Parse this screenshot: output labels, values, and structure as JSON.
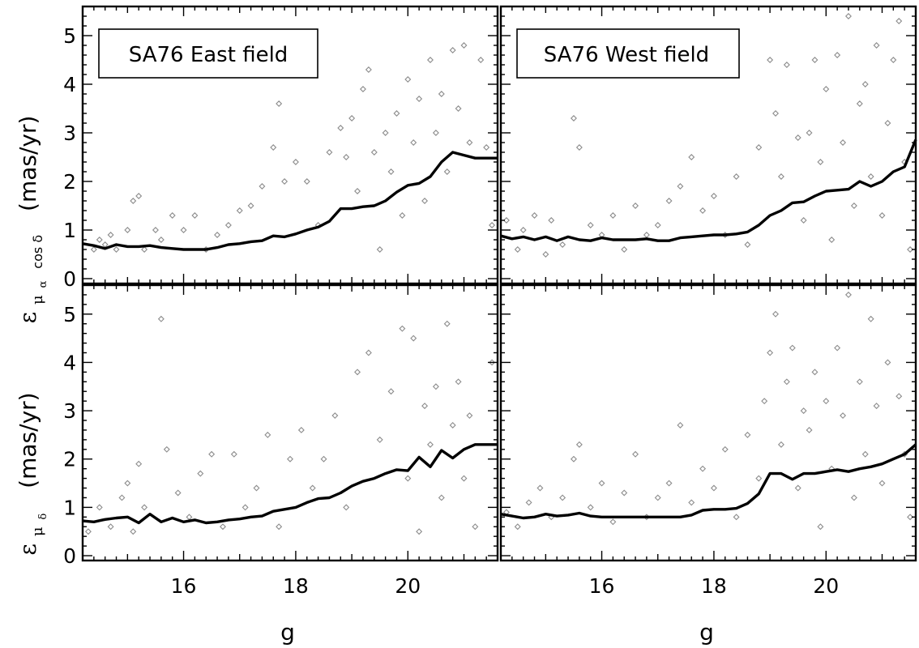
{
  "figure": {
    "x_axis_label": "g",
    "y_axis_top_unit": "(mas/yr)",
    "y_axis_bottom_unit": "(mas/yr)",
    "y_axis_top_symbol": "ε",
    "y_axis_top_subscript_main": "μ",
    "y_axis_top_subscript_sub": "α",
    "y_axis_top_subscript_tail": "cos δ",
    "y_axis_bottom_symbol": "ε",
    "y_axis_bottom_subscript_main": "μ",
    "y_axis_bottom_subscript_sub": "δ"
  },
  "chart_data": [
    {
      "type": "scatter",
      "panel": "top-left",
      "legend": "SA76 East field",
      "xlim": [
        14.2,
        21.6
      ],
      "ylim": [
        -0.1,
        5.6
      ],
      "x_ticks": [
        16,
        18,
        20
      ],
      "y_ticks": [
        0,
        1,
        2,
        3,
        4,
        5
      ],
      "scatter_color": "#8c8c8c",
      "curve_color": "#000000",
      "points": [
        [
          14.4,
          0.6
        ],
        [
          14.5,
          0.8
        ],
        [
          14.6,
          0.7
        ],
        [
          14.7,
          0.9
        ],
        [
          14.8,
          0.6
        ],
        [
          15.0,
          1.0
        ],
        [
          15.1,
          1.6
        ],
        [
          15.2,
          1.7
        ],
        [
          15.3,
          0.6
        ],
        [
          15.5,
          1.0
        ],
        [
          15.6,
          0.8
        ],
        [
          15.8,
          1.3
        ],
        [
          16.0,
          1.0
        ],
        [
          16.2,
          1.3
        ],
        [
          16.4,
          0.6
        ],
        [
          16.6,
          0.9
        ],
        [
          16.8,
          1.1
        ],
        [
          17.0,
          1.4
        ],
        [
          17.2,
          1.5
        ],
        [
          17.4,
          1.9
        ],
        [
          17.6,
          2.7
        ],
        [
          17.7,
          3.6
        ],
        [
          17.8,
          2.0
        ],
        [
          18.0,
          2.4
        ],
        [
          18.2,
          2.0
        ],
        [
          18.4,
          1.1
        ],
        [
          18.6,
          2.6
        ],
        [
          18.8,
          3.1
        ],
        [
          18.9,
          2.5
        ],
        [
          19.0,
          3.3
        ],
        [
          19.1,
          1.8
        ],
        [
          19.2,
          3.9
        ],
        [
          19.3,
          4.3
        ],
        [
          19.4,
          2.6
        ],
        [
          19.5,
          0.6
        ],
        [
          19.6,
          3.0
        ],
        [
          19.7,
          2.2
        ],
        [
          19.8,
          3.4
        ],
        [
          19.9,
          1.3
        ],
        [
          20.0,
          4.1
        ],
        [
          20.1,
          2.8
        ],
        [
          20.2,
          3.7
        ],
        [
          20.3,
          1.6
        ],
        [
          20.4,
          4.5
        ],
        [
          20.5,
          3.0
        ],
        [
          20.6,
          3.8
        ],
        [
          20.7,
          2.2
        ],
        [
          20.8,
          4.7
        ],
        [
          20.9,
          3.5
        ],
        [
          21.0,
          4.8
        ],
        [
          21.1,
          2.8
        ],
        [
          21.3,
          4.5
        ],
        [
          21.4,
          2.7
        ],
        [
          21.5,
          1.1
        ]
      ],
      "curve_x": [
        14.2,
        14.4,
        14.6,
        14.8,
        15.0,
        15.2,
        15.4,
        15.6,
        15.8,
        16.0,
        16.2,
        16.4,
        16.6,
        16.8,
        17.0,
        17.2,
        17.4,
        17.6,
        17.8,
        18.0,
        18.2,
        18.4,
        18.6,
        18.8,
        19.0,
        19.2,
        19.4,
        19.6,
        19.8,
        20.0,
        20.2,
        20.4,
        20.6,
        20.8,
        21.0,
        21.2,
        21.4,
        21.6
      ],
      "curve_y": [
        0.72,
        0.68,
        0.62,
        0.7,
        0.66,
        0.66,
        0.68,
        0.64,
        0.62,
        0.6,
        0.6,
        0.6,
        0.64,
        0.7,
        0.72,
        0.76,
        0.78,
        0.88,
        0.86,
        0.92,
        1.0,
        1.06,
        1.18,
        1.44,
        1.44,
        1.48,
        1.5,
        1.6,
        1.78,
        1.92,
        1.96,
        2.1,
        2.4,
        2.6,
        2.54,
        2.48,
        2.48,
        2.48
      ]
    },
    {
      "type": "scatter",
      "panel": "top-right",
      "legend": "SA76 West field",
      "xlim": [
        14.2,
        21.6
      ],
      "ylim": [
        -0.1,
        5.6
      ],
      "x_ticks": [
        16,
        18,
        20
      ],
      "y_ticks": [
        0,
        1,
        2,
        3,
        4,
        5
      ],
      "scatter_color": "#8c8c8c",
      "curve_color": "#000000",
      "points": [
        [
          14.3,
          1.2
        ],
        [
          14.5,
          0.6
        ],
        [
          14.6,
          1.0
        ],
        [
          14.8,
          1.3
        ],
        [
          15.0,
          0.5
        ],
        [
          15.1,
          1.2
        ],
        [
          15.3,
          0.7
        ],
        [
          15.5,
          3.3
        ],
        [
          15.6,
          2.7
        ],
        [
          15.8,
          1.1
        ],
        [
          16.0,
          0.9
        ],
        [
          16.2,
          1.3
        ],
        [
          16.4,
          0.6
        ],
        [
          16.6,
          1.5
        ],
        [
          16.8,
          0.9
        ],
        [
          17.0,
          1.1
        ],
        [
          17.2,
          1.6
        ],
        [
          17.4,
          1.9
        ],
        [
          17.6,
          2.5
        ],
        [
          17.8,
          1.4
        ],
        [
          18.0,
          1.7
        ],
        [
          18.2,
          0.9
        ],
        [
          18.4,
          2.1
        ],
        [
          18.6,
          0.7
        ],
        [
          18.8,
          2.7
        ],
        [
          19.0,
          4.5
        ],
        [
          19.1,
          3.4
        ],
        [
          19.2,
          2.1
        ],
        [
          19.3,
          4.4
        ],
        [
          19.5,
          2.9
        ],
        [
          19.6,
          1.2
        ],
        [
          19.7,
          3.0
        ],
        [
          19.8,
          4.5
        ],
        [
          19.9,
          2.4
        ],
        [
          20.0,
          3.9
        ],
        [
          20.1,
          0.8
        ],
        [
          20.2,
          4.6
        ],
        [
          20.3,
          2.8
        ],
        [
          20.4,
          5.4
        ],
        [
          20.5,
          1.5
        ],
        [
          20.6,
          3.6
        ],
        [
          20.7,
          4.0
        ],
        [
          20.8,
          2.1
        ],
        [
          20.9,
          4.8
        ],
        [
          21.0,
          1.3
        ],
        [
          21.1,
          3.2
        ],
        [
          21.2,
          4.5
        ],
        [
          21.3,
          5.3
        ],
        [
          21.4,
          2.4
        ],
        [
          21.5,
          0.6
        ]
      ],
      "curve_x": [
        14.2,
        14.4,
        14.6,
        14.8,
        15.0,
        15.2,
        15.4,
        15.6,
        15.8,
        16.0,
        16.2,
        16.4,
        16.6,
        16.8,
        17.0,
        17.2,
        17.4,
        17.6,
        17.8,
        18.0,
        18.2,
        18.4,
        18.6,
        18.8,
        19.0,
        19.2,
        19.4,
        19.6,
        19.8,
        20.0,
        20.2,
        20.4,
        20.6,
        20.8,
        21.0,
        21.2,
        21.4,
        21.6
      ],
      "curve_y": [
        0.88,
        0.82,
        0.86,
        0.8,
        0.86,
        0.78,
        0.86,
        0.8,
        0.78,
        0.84,
        0.8,
        0.8,
        0.8,
        0.82,
        0.78,
        0.78,
        0.84,
        0.86,
        0.88,
        0.9,
        0.9,
        0.92,
        0.96,
        1.1,
        1.3,
        1.4,
        1.56,
        1.58,
        1.7,
        1.8,
        1.82,
        1.84,
        2.0,
        1.9,
        2.0,
        2.2,
        2.3,
        2.86
      ]
    },
    {
      "type": "scatter",
      "panel": "bottom-left",
      "xlim": [
        14.2,
        21.6
      ],
      "ylim": [
        -0.1,
        5.6
      ],
      "x_ticks": [
        16,
        18,
        20
      ],
      "y_ticks": [
        0,
        1,
        2,
        3,
        4,
        5
      ],
      "scatter_color": "#8c8c8c",
      "curve_color": "#000000",
      "points": [
        [
          14.3,
          0.5
        ],
        [
          14.5,
          1.0
        ],
        [
          14.7,
          0.6
        ],
        [
          14.9,
          1.2
        ],
        [
          15.0,
          1.5
        ],
        [
          15.1,
          0.5
        ],
        [
          15.2,
          1.9
        ],
        [
          15.3,
          1.0
        ],
        [
          15.6,
          4.9
        ],
        [
          15.7,
          2.2
        ],
        [
          15.9,
          1.3
        ],
        [
          16.1,
          0.8
        ],
        [
          16.3,
          1.7
        ],
        [
          16.5,
          2.1
        ],
        [
          16.7,
          0.6
        ],
        [
          16.9,
          2.1
        ],
        [
          17.1,
          1.0
        ],
        [
          17.3,
          1.4
        ],
        [
          17.5,
          2.5
        ],
        [
          17.7,
          0.6
        ],
        [
          17.9,
          2.0
        ],
        [
          18.1,
          2.6
        ],
        [
          18.3,
          1.4
        ],
        [
          18.5,
          2.0
        ],
        [
          18.7,
          2.9
        ],
        [
          18.9,
          1.0
        ],
        [
          19.1,
          3.8
        ],
        [
          19.3,
          4.2
        ],
        [
          19.5,
          2.4
        ],
        [
          19.7,
          3.4
        ],
        [
          19.9,
          4.7
        ],
        [
          20.0,
          1.6
        ],
        [
          20.1,
          4.5
        ],
        [
          20.2,
          0.5
        ],
        [
          20.3,
          3.1
        ],
        [
          20.4,
          2.3
        ],
        [
          20.5,
          3.5
        ],
        [
          20.6,
          1.2
        ],
        [
          20.7,
          4.8
        ],
        [
          20.8,
          2.7
        ],
        [
          20.9,
          3.6
        ],
        [
          21.0,
          1.6
        ],
        [
          21.1,
          2.9
        ],
        [
          21.2,
          0.6
        ],
        [
          21.5,
          4.0
        ]
      ],
      "curve_x": [
        14.2,
        14.4,
        14.6,
        14.8,
        15.0,
        15.2,
        15.4,
        15.6,
        15.8,
        16.0,
        16.2,
        16.4,
        16.6,
        16.8,
        17.0,
        17.2,
        17.4,
        17.6,
        17.8,
        18.0,
        18.2,
        18.4,
        18.6,
        18.8,
        19.0,
        19.2,
        19.4,
        19.6,
        19.8,
        20.0,
        20.2,
        20.4,
        20.6,
        20.8,
        21.0,
        21.2,
        21.4,
        21.6
      ],
      "curve_y": [
        0.72,
        0.7,
        0.75,
        0.78,
        0.8,
        0.68,
        0.86,
        0.7,
        0.78,
        0.7,
        0.74,
        0.68,
        0.7,
        0.74,
        0.76,
        0.8,
        0.82,
        0.92,
        0.96,
        1.0,
        1.1,
        1.18,
        1.2,
        1.3,
        1.44,
        1.54,
        1.6,
        1.7,
        1.78,
        1.76,
        2.04,
        1.84,
        2.18,
        2.02,
        2.2,
        2.3,
        2.3,
        2.3
      ]
    },
    {
      "type": "scatter",
      "panel": "bottom-right",
      "xlim": [
        14.2,
        21.6
      ],
      "ylim": [
        -0.1,
        5.6
      ],
      "x_ticks": [
        16,
        18,
        20
      ],
      "y_ticks": [
        0,
        1,
        2,
        3,
        4,
        5
      ],
      "scatter_color": "#8c8c8c",
      "curve_color": "#000000",
      "points": [
        [
          14.3,
          0.9
        ],
        [
          14.5,
          0.6
        ],
        [
          14.7,
          1.1
        ],
        [
          14.9,
          1.4
        ],
        [
          15.1,
          0.8
        ],
        [
          15.3,
          1.2
        ],
        [
          15.5,
          2.0
        ],
        [
          15.6,
          2.3
        ],
        [
          15.8,
          1.0
        ],
        [
          16.0,
          1.5
        ],
        [
          16.2,
          0.7
        ],
        [
          16.4,
          1.3
        ],
        [
          16.6,
          2.1
        ],
        [
          16.8,
          0.8
        ],
        [
          17.0,
          1.2
        ],
        [
          17.2,
          1.5
        ],
        [
          17.4,
          2.7
        ],
        [
          17.6,
          1.1
        ],
        [
          17.8,
          1.8
        ],
        [
          18.0,
          1.4
        ],
        [
          18.2,
          2.2
        ],
        [
          18.4,
          0.8
        ],
        [
          18.6,
          2.5
        ],
        [
          18.8,
          1.6
        ],
        [
          18.9,
          3.2
        ],
        [
          19.0,
          4.2
        ],
        [
          19.1,
          5.0
        ],
        [
          19.2,
          2.3
        ],
        [
          19.3,
          3.6
        ],
        [
          19.4,
          4.3
        ],
        [
          19.5,
          1.4
        ],
        [
          19.6,
          3.0
        ],
        [
          19.7,
          2.6
        ],
        [
          19.8,
          3.8
        ],
        [
          19.9,
          0.6
        ],
        [
          20.0,
          3.2
        ],
        [
          20.1,
          1.8
        ],
        [
          20.2,
          4.3
        ],
        [
          20.3,
          2.9
        ],
        [
          20.4,
          5.4
        ],
        [
          20.5,
          1.2
        ],
        [
          20.6,
          3.6
        ],
        [
          20.7,
          2.1
        ],
        [
          20.8,
          4.9
        ],
        [
          20.9,
          3.1
        ],
        [
          21.0,
          1.5
        ],
        [
          21.1,
          4.0
        ],
        [
          21.3,
          3.3
        ],
        [
          21.4,
          2.1
        ],
        [
          21.5,
          0.8
        ]
      ],
      "curve_x": [
        14.2,
        14.4,
        14.6,
        14.8,
        15.0,
        15.2,
        15.4,
        15.6,
        15.8,
        16.0,
        16.2,
        16.4,
        16.6,
        16.8,
        17.0,
        17.2,
        17.4,
        17.6,
        17.8,
        18.0,
        18.2,
        18.4,
        18.6,
        18.8,
        19.0,
        19.2,
        19.4,
        19.6,
        19.8,
        20.0,
        20.2,
        20.4,
        20.6,
        20.8,
        21.0,
        21.2,
        21.4,
        21.6
      ],
      "curve_y": [
        0.86,
        0.82,
        0.78,
        0.8,
        0.86,
        0.82,
        0.84,
        0.88,
        0.82,
        0.8,
        0.8,
        0.8,
        0.8,
        0.8,
        0.8,
        0.8,
        0.8,
        0.84,
        0.94,
        0.96,
        0.96,
        0.98,
        1.08,
        1.28,
        1.7,
        1.7,
        1.58,
        1.7,
        1.7,
        1.74,
        1.78,
        1.74,
        1.8,
        1.84,
        1.9,
        2.0,
        2.1,
        2.3
      ]
    }
  ]
}
